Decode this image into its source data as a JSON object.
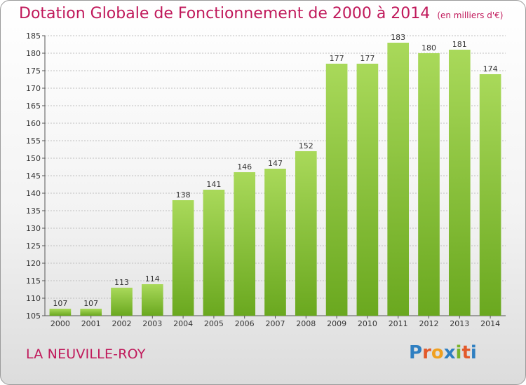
{
  "title": "Dotation Globale de Fonctionnement de 2000 à 2014",
  "unit_note": "(en milliers d'€)",
  "place": "LA NEUVILLE-ROY",
  "logo": {
    "text": "Proxiti",
    "letter_colors": [
      "#2f7fc1",
      "#e2592a",
      "#f0a020",
      "#2f7fc1",
      "#79b32a",
      "#e2592a",
      "#2f7fc1"
    ]
  },
  "colors": {
    "title": "#c0185a",
    "bar_light": "#a9d95a",
    "bar_dark": "#6aa81f",
    "grid": "#bfbfbf"
  },
  "chart_data": {
    "type": "bar",
    "categories": [
      "2000",
      "2001",
      "2002",
      "2003",
      "2004",
      "2005",
      "2006",
      "2007",
      "2008",
      "2009",
      "2010",
      "2011",
      "2012",
      "2013",
      "2014"
    ],
    "values": [
      107,
      107,
      113,
      114,
      138,
      141,
      146,
      147,
      152,
      177,
      177,
      183,
      180,
      181,
      174
    ],
    "data_labels": [
      "107",
      "107",
      "113",
      "114",
      "138",
      "141",
      "146",
      "147",
      "152",
      "177",
      "177",
      "183",
      "180",
      "181",
      "174"
    ],
    "ylim": [
      105,
      185
    ],
    "yticks": [
      "105",
      "110",
      "115",
      "120",
      "125",
      "130",
      "135",
      "140",
      "145",
      "150",
      "155",
      "160",
      "165",
      "170",
      "175",
      "180",
      "185"
    ],
    "grid": true
  }
}
